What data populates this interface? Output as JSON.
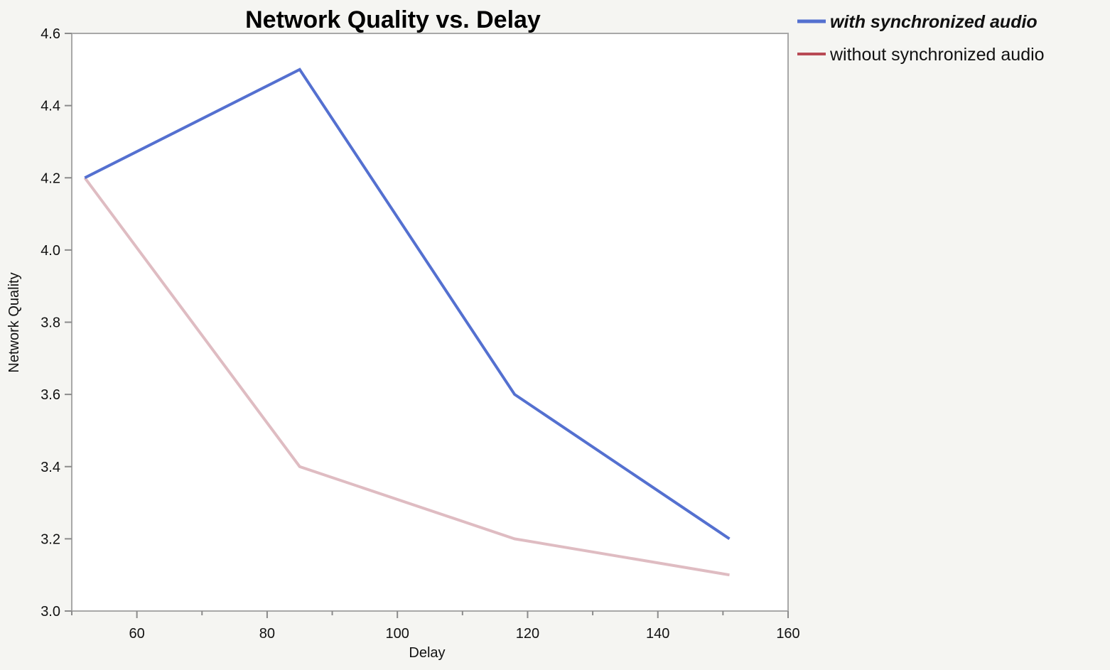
{
  "chart_data": {
    "type": "line",
    "title": "Network Quality vs. Delay",
    "xlabel": "Delay",
    "ylabel": "Network Quality",
    "xlim": [
      50,
      160
    ],
    "ylim": [
      3.0,
      4.6
    ],
    "x_ticks": [
      "60",
      "80",
      "100",
      "120",
      "140",
      "160"
    ],
    "y_ticks": [
      "3.0",
      "3.2",
      "3.4",
      "3.6",
      "3.8",
      "4.0",
      "4.2",
      "4.4",
      "4.6"
    ],
    "x": [
      52,
      85,
      118,
      151
    ],
    "series": [
      {
        "name": "with synchronized audio",
        "values": [
          4.2,
          4.5,
          3.6,
          3.2
        ],
        "color": "#5470d0",
        "highlighted": true
      },
      {
        "name": "without synchronized audio",
        "values": [
          4.2,
          3.4,
          3.2,
          3.1
        ],
        "color": "#b84a55",
        "line_color": "#dfbcc2",
        "highlighted": false
      }
    ],
    "grid": false,
    "legend_position": "top-right"
  }
}
